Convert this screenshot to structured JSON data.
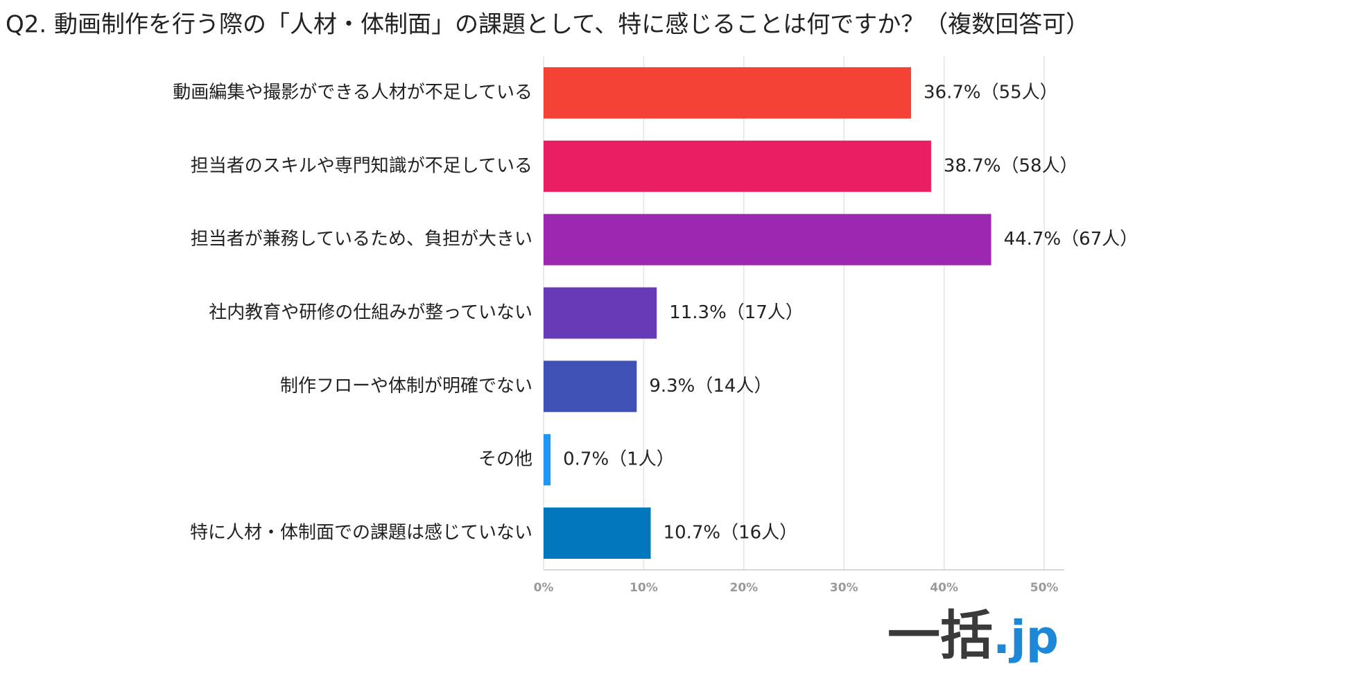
{
  "chart_data": {
    "type": "barh",
    "title": "Q2. 動画制作を行う際の「人材・体制面」の課題として、特に感じることは何ですか？（複数回答可）",
    "categories": [
      "動画編集や撮影ができる人材が不足している",
      "担当者のスキルや専門知識が不足している",
      "担当者が兼務しているため、負担が大きい",
      "社内教育や研修の仕組みが整っていない",
      "制作フローや体制が明確でない",
      "その他",
      "特に人材・体制面での課題は感じていない"
    ],
    "values": [
      36.7,
      38.7,
      44.7,
      11.3,
      9.3,
      0.7,
      10.7
    ],
    "value_labels": [
      "36.7%（55人）",
      "38.7%（58人）",
      "44.7%（67人）",
      "11.3%（17人）",
      "9.3%（14人）",
      "0.7%（1人）",
      "10.7%（16人）"
    ],
    "colors": [
      "#f44336",
      "#e91e63",
      "#9c27b0",
      "#673ab7",
      "#3f51b5",
      "#2196f3",
      "#0277bd"
    ],
    "xlim": [
      0,
      52
    ],
    "xticks": [
      {
        "value": 0,
        "label": "0%"
      },
      {
        "value": 10,
        "label": "10%"
      },
      {
        "value": 20,
        "label": "20%"
      },
      {
        "value": 30,
        "label": "30%"
      },
      {
        "value": 40,
        "label": "40%"
      },
      {
        "value": 50,
        "label": "50%"
      }
    ],
    "grid": true
  },
  "logo": {
    "main": "一括",
    "suffix": ".jp"
  }
}
